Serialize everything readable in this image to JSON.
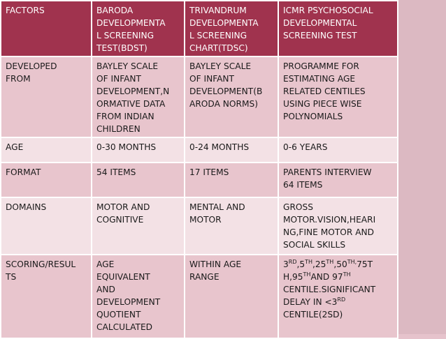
{
  "table": {
    "header": [
      "FACTORS",
      "BARODA\nDEVELOPMENTA\nL SCREENING\nTEST(BDST)",
      "TRIVANDRUM\nDEVELOPMENTA\nL SCREENING\nCHART(TDSC)",
      "ICMR PSYCHOSOCIAL\nDEVELOPMENTAL\nSCREENING TEST"
    ],
    "rows": [
      [
        "DEVELOPED\nFROM",
        "BAYLEY SCALE\nOF INFANT\nDEVELOPMENT,N\nORMATIVE DATA\nFROM INDIAN\nCHILDREN",
        "BAYLEY SCALE\nOF INFANT\nDEVELOPMENT(B\nARODA NORMS)",
        "PROGRAMME FOR\nESTIMATING AGE\nRELATED CENTILES\nUSING PIECE WISE\nPOLYNOMIALS"
      ],
      [
        "AGE",
        "0-30 MONTHS",
        "0-24 MONTHS",
        "0-6 YEARS"
      ],
      [
        "FORMAT",
        "54 ITEMS",
        "17 ITEMS",
        "PARENTS INTERVIEW\n64 ITEMS"
      ],
      [
        "DOMAINS",
        "MOTOR AND\nCOGNITIVE",
        "MENTAL AND\nMOTOR",
        "GROSS\nMOTOR.VISION,HEARI\nNG,FINE MOTOR AND\nSOCIAL SKILLS"
      ],
      [
        "SCORING/RESUL\nTS",
        "AGE\nEQUIVALENT\nAND\nDEVELOPMENT\nQUOTIENT\nCALCULATED",
        "WITHIN AGE\nRANGE",
        ""
      ]
    ],
    "scoring_icmr": {
      "p1": "3",
      "s1": "RD",
      "p2": ",5",
      "s2": "TH",
      "p3": ",25",
      "s3": "TH",
      "p4": ",50",
      "s4": "TH,",
      "p5": "75T\nH,95",
      "s5": "TH",
      "p6": "AND 97",
      "s6": "TH",
      "p7": "\nCENTILE.SIGNIFICANT\nDELAY IN <3",
      "s7": "RD",
      "p8": "\nCENTILE(2SD)"
    }
  },
  "colors": {
    "header_bg": "#a0334e",
    "row_odd": "#e8c5cd",
    "row_even": "#f3e1e5",
    "border": "#ffffff"
  }
}
